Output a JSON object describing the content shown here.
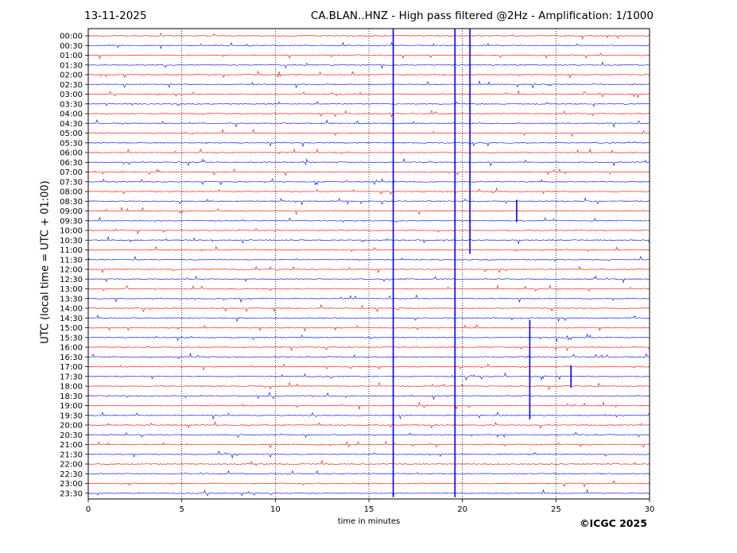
{
  "header": {
    "date": "13-11-2025",
    "title": "CA.BLAN..HNZ - High pass filtered @2Hz - Amplification: 1/1000"
  },
  "footer": {
    "copyright": "©ICGC 2025"
  },
  "chart_data": {
    "type": "line",
    "title": "CA.BLAN..HNZ - High pass filtered @2Hz - Amplification: 1/1000",
    "xlabel": "time in minutes",
    "ylabel": "UTC (local time = UTC + 01:00)",
    "xlim": [
      0,
      30
    ],
    "x_ticks": [
      0,
      5,
      10,
      15,
      20,
      25,
      30
    ],
    "grid": "vertical dotted lines at 5-minute intervals",
    "row_labels": [
      "00:00",
      "00:30",
      "01:00",
      "01:30",
      "02:00",
      "02:30",
      "03:00",
      "03:30",
      "04:00",
      "04:30",
      "05:00",
      "05:30",
      "06:00",
      "06:30",
      "07:00",
      "07:30",
      "08:00",
      "08:30",
      "09:00",
      "09:30",
      "10:00",
      "10:30",
      "11:00",
      "11:30",
      "12:00",
      "12:30",
      "13:00",
      "13:30",
      "14:00",
      "14:30",
      "15:00",
      "15:30",
      "16:00",
      "16:30",
      "17:00",
      "17:30",
      "18:00",
      "18:30",
      "19:00",
      "19:30",
      "20:00",
      "20:30",
      "21:00",
      "21:30",
      "22:00",
      "22:30",
      "23:00",
      "23:30"
    ],
    "colors": {
      "even_rows": "#ff0000",
      "odd_rows": "#0000ff"
    },
    "major_events": [
      {
        "row": "00:00",
        "minute": 16.3,
        "type": "vertical spike through rows 00:00-23:30"
      },
      {
        "row": "00:00",
        "minute": 19.6,
        "type": "vertical spike through rows 00:00-23:30"
      },
      {
        "row": "00:00",
        "minute": 20.4,
        "type": "vertical spike through rows 00:00-11:00"
      },
      {
        "row": "09:00",
        "minute": 22.9,
        "type": "spike"
      },
      {
        "row": "15:00",
        "minute": 23.6,
        "type": "spike through rows 15:00-19:30"
      },
      {
        "row": "17:30",
        "minute": 25.8,
        "type": "spike"
      }
    ]
  }
}
